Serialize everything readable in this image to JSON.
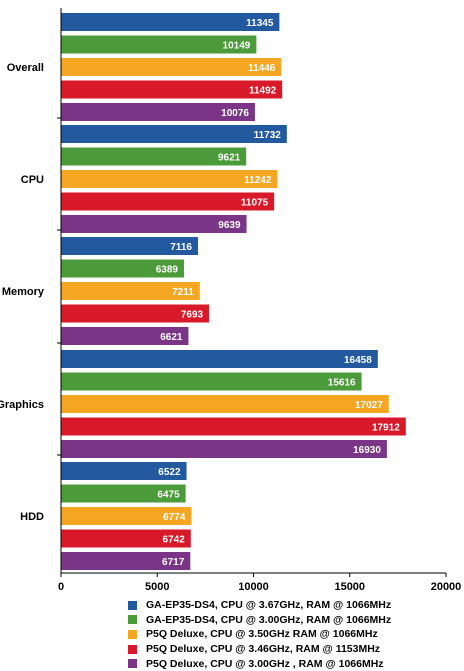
{
  "chart_data": {
    "type": "bar",
    "orientation": "horizontal",
    "categories": [
      "Overall",
      "CPU",
      "Memory",
      "Graphics",
      "HDD"
    ],
    "series": [
      {
        "name": "GA-EP35-DS4, CPU @ 3.67GHz, RAM @ 1066MHz",
        "color": "#235a9f",
        "values": [
          11345,
          11732,
          7116,
          16458,
          6522
        ]
      },
      {
        "name": "GA-EP35-DS4, CPU @ 3.00GHz, RAM @ 1066MHz",
        "color": "#4c9b3a",
        "values": [
          10149,
          9621,
          6389,
          15616,
          6475
        ]
      },
      {
        "name": "P5Q Deluxe, CPU @ 3.50GHz RAM @ 1066MHz",
        "color": "#f5a623",
        "values": [
          11446,
          11242,
          7211,
          17027,
          6774
        ]
      },
      {
        "name": "P5Q Deluxe, CPU @ 3.46GHz, RAM @ 1153MHz",
        "color": "#d7192a",
        "values": [
          11492,
          11075,
          7693,
          17912,
          6742
        ]
      },
      {
        "name": "P5Q Deluxe, CPU @ 3.00GHz , RAM @ 1066MHz",
        "color": "#7a3586",
        "values": [
          10076,
          9639,
          6621,
          16930,
          6717
        ]
      }
    ],
    "x_ticks": [
      "0",
      "5000",
      "10000",
      "15000",
      "20000"
    ],
    "xlim": [
      0,
      20000
    ],
    "grid": false,
    "legend_position": "bottom"
  }
}
